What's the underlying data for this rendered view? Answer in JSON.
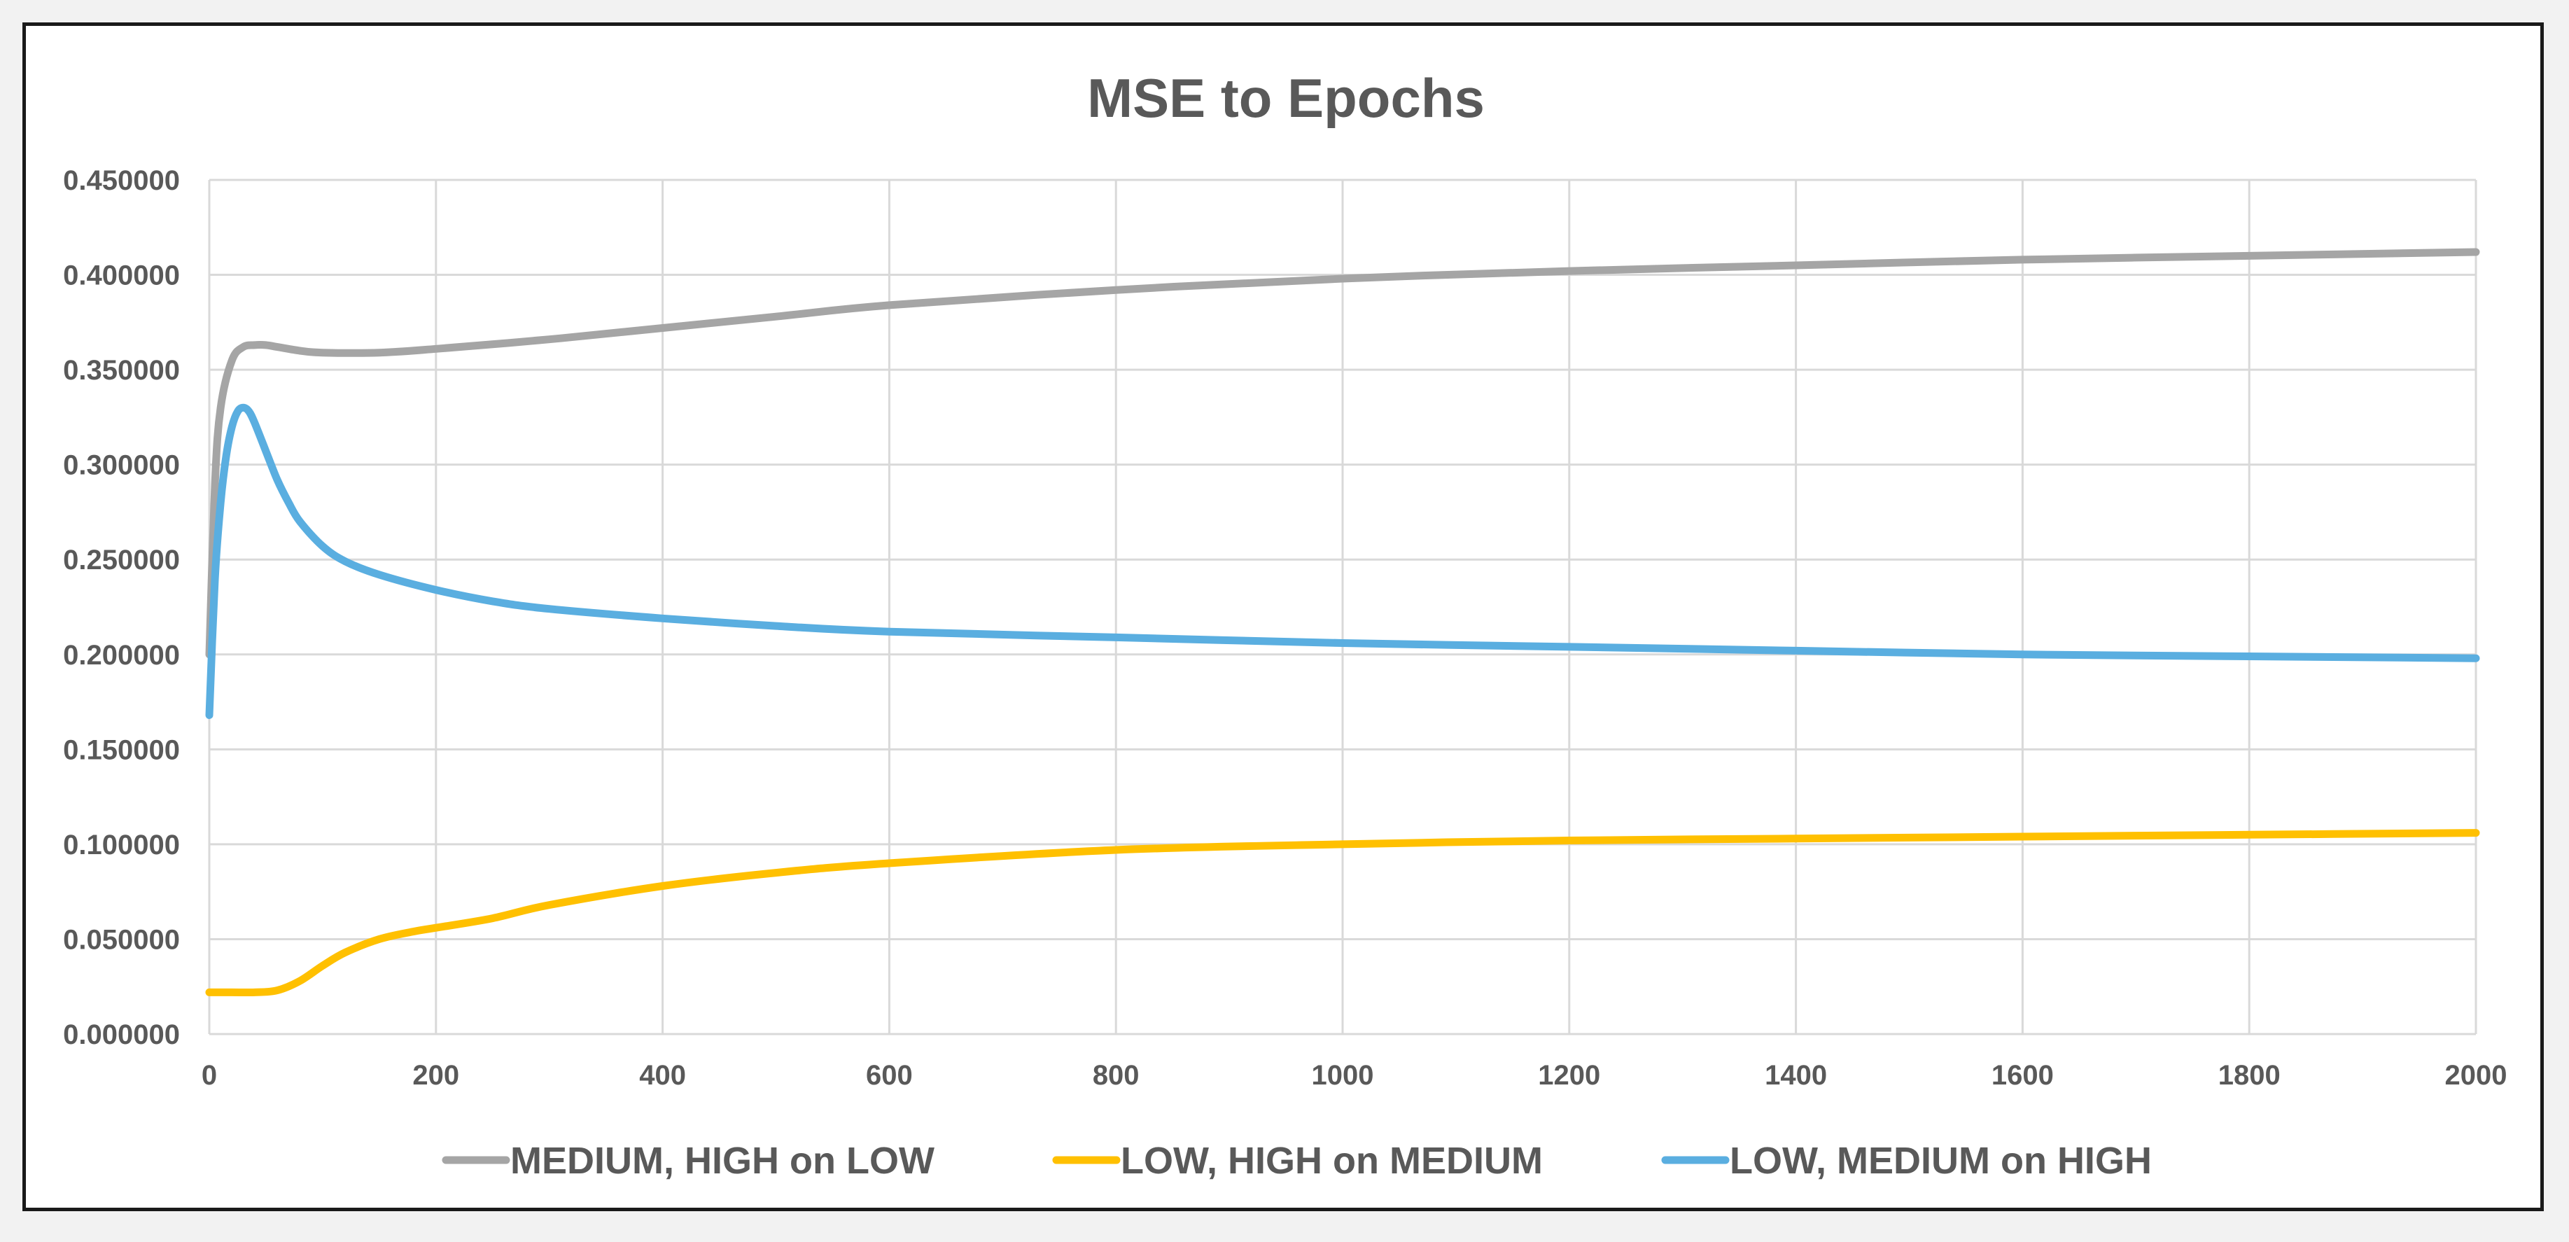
{
  "chart_data": {
    "type": "line",
    "title": "MSE to Epochs",
    "xlabel": "",
    "ylabel": "",
    "xlim": [
      0,
      2000
    ],
    "ylim": [
      0,
      0.45
    ],
    "x_ticks": [
      0,
      200,
      400,
      600,
      800,
      1000,
      1200,
      1400,
      1600,
      1800,
      2000
    ],
    "x_tick_labels": [
      "0",
      "200",
      "400",
      "600",
      "800",
      "1000",
      "1200",
      "1400",
      "1600",
      "1800",
      "2000"
    ],
    "y_ticks": [
      0,
      0.05,
      0.1,
      0.15,
      0.2,
      0.25,
      0.3,
      0.35,
      0.4,
      0.45
    ],
    "y_tick_labels": [
      "0.000000",
      "0.050000",
      "0.100000",
      "0.150000",
      "0.200000",
      "0.250000",
      "0.300000",
      "0.350000",
      "0.400000",
      "0.450000"
    ],
    "grid": true,
    "legend_position": "bottom",
    "series": [
      {
        "name": "MEDIUM, HIGH on LOW",
        "color": "#a5a5a5",
        "x": [
          0,
          5,
          10,
          20,
          30,
          40,
          50,
          60,
          80,
          100,
          150,
          200,
          300,
          400,
          500,
          600,
          800,
          1000,
          1200,
          1400,
          1600,
          1800,
          2000
        ],
        "y": [
          0.2,
          0.29,
          0.33,
          0.355,
          0.362,
          0.363,
          0.363,
          0.362,
          0.36,
          0.359,
          0.359,
          0.361,
          0.366,
          0.372,
          0.378,
          0.384,
          0.392,
          0.398,
          0.402,
          0.405,
          0.408,
          0.41,
          0.412
        ]
      },
      {
        "name": "LOW, HIGH on MEDIUM",
        "color": "#ffc000",
        "x": [
          0,
          20,
          40,
          60,
          80,
          100,
          120,
          150,
          180,
          200,
          250,
          300,
          400,
          500,
          600,
          800,
          1000,
          1200,
          1400,
          1600,
          1800,
          2000
        ],
        "y": [
          0.022,
          0.022,
          0.022,
          0.023,
          0.028,
          0.036,
          0.043,
          0.05,
          0.054,
          0.056,
          0.061,
          0.068,
          0.078,
          0.085,
          0.09,
          0.097,
          0.1,
          0.102,
          0.103,
          0.104,
          0.105,
          0.106
        ]
      },
      {
        "name": "LOW, MEDIUM on HIGH",
        "color": "#5aaee0",
        "x": [
          0,
          5,
          10,
          15,
          20,
          25,
          30,
          35,
          40,
          50,
          60,
          70,
          80,
          100,
          120,
          150,
          200,
          250,
          300,
          400,
          500,
          600,
          800,
          1000,
          1200,
          1400,
          1600,
          1800,
          2000
        ],
        "y": [
          0.168,
          0.24,
          0.28,
          0.305,
          0.32,
          0.328,
          0.33,
          0.328,
          0.322,
          0.307,
          0.292,
          0.28,
          0.27,
          0.257,
          0.249,
          0.242,
          0.234,
          0.228,
          0.224,
          0.219,
          0.215,
          0.212,
          0.209,
          0.206,
          0.204,
          0.202,
          0.2,
          0.199,
          0.198
        ]
      }
    ]
  }
}
